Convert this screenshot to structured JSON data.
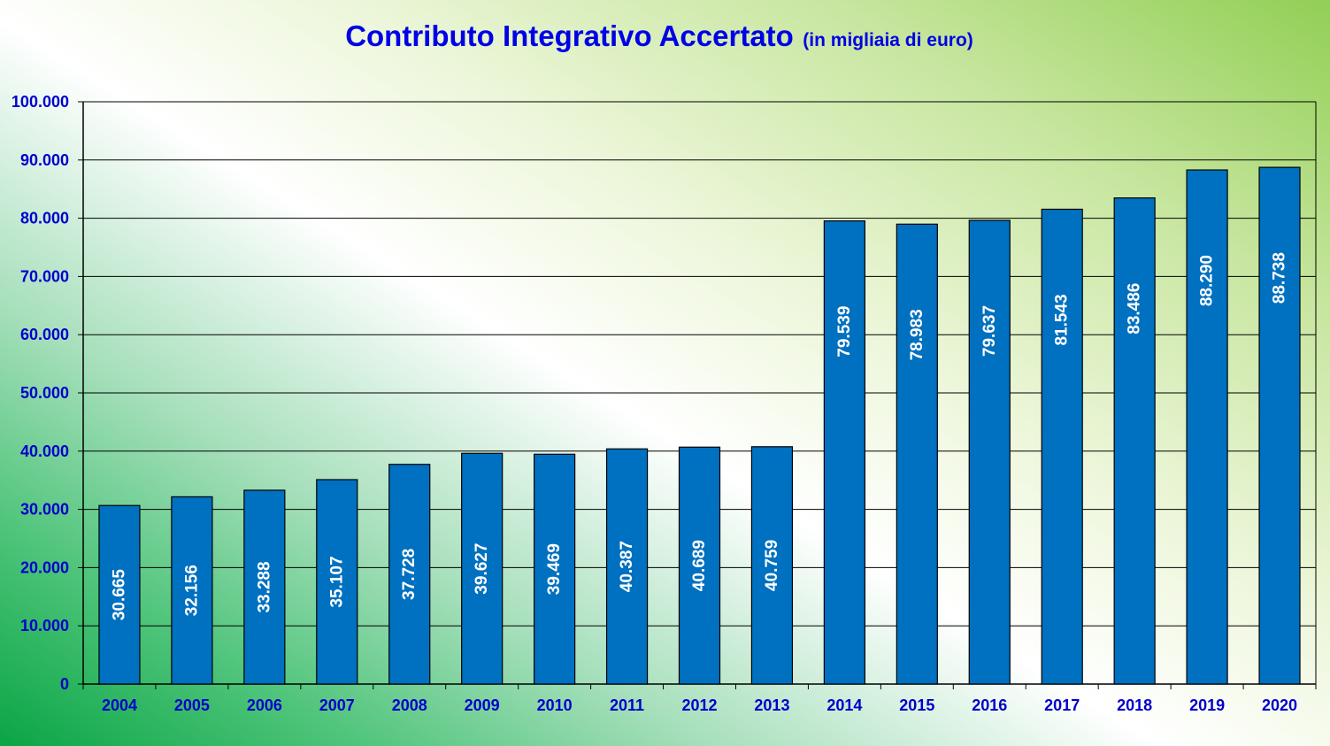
{
  "chart_data": {
    "type": "bar",
    "title": "Contributo Integrativo Accertato",
    "subtitle": "(in migliaia di euro)",
    "xlabel": "",
    "ylabel": "",
    "categories": [
      "2004",
      "2005",
      "2006",
      "2007",
      "2008",
      "2009",
      "2010",
      "2011",
      "2012",
      "2013",
      "2014",
      "2015",
      "2016",
      "2017",
      "2018",
      "2019",
      "2020"
    ],
    "values": [
      30665,
      32156,
      33288,
      35107,
      37728,
      39627,
      39469,
      40387,
      40689,
      40759,
      79539,
      78983,
      79637,
      81543,
      83486,
      88290,
      88738
    ],
    "data_labels": [
      "30.665",
      "32.156",
      "33.288",
      "35.107",
      "37.728",
      "39.627",
      "39.469",
      "40.387",
      "40.689",
      "40.759",
      "79.539",
      "78.983",
      "79.637",
      "81.543",
      "83.486",
      "88.290",
      "88.738"
    ],
    "ylim": [
      0,
      100000
    ],
    "y_ticks": [
      0,
      10000,
      20000,
      30000,
      40000,
      50000,
      60000,
      70000,
      80000,
      90000,
      100000
    ],
    "y_tick_labels": [
      "0",
      "10.000",
      "20.000",
      "30.000",
      "40.000",
      "50.000",
      "60.000",
      "70.000",
      "80.000",
      "90.000",
      "100.000"
    ],
    "grid": true,
    "legend": "none",
    "colors": {
      "bar": "#0070c0",
      "bar_outline": "#000000",
      "title": "#0000e6",
      "tick_labels": "#0000cc",
      "data_labels": "#ffffff",
      "gridlines": "#000000"
    }
  }
}
